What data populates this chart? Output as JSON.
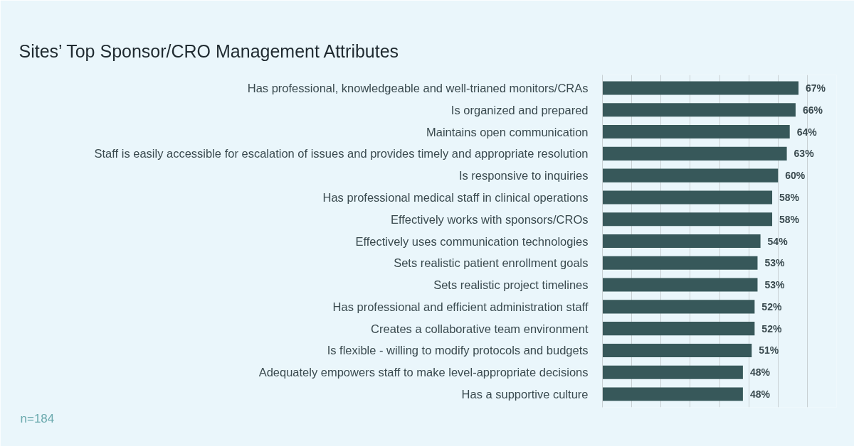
{
  "chart_data": {
    "type": "bar",
    "orientation": "horizontal",
    "title": "Sites’ Top Sponsor/CRO Management Attributes",
    "categories": [
      "Has professional, knowledgeable and well-trianed monitors/CRAs",
      "Is organized and prepared",
      "Maintains open communication",
      "Staff is easily accessible for escalation of issues and provides timely and appropriate resolution",
      "Is responsive to inquiries",
      "Has professional medical staff in clinical operations",
      "Effectively works with sponsors/CROs",
      "Effectively uses communication technologies",
      "Sets realistic patient enrollment goals",
      "Sets realistic project timelines",
      "Has professional and efficient administration staff",
      "Creates a collaborative team environment",
      "Is flexible - willing to modify protocols and budgets",
      "Adequately empowers staff to make level-appropriate decisions",
      "Has a supportive culture"
    ],
    "values": [
      67,
      66,
      64,
      63,
      60,
      58,
      58,
      54,
      53,
      53,
      52,
      52,
      51,
      48,
      48
    ],
    "value_labels": [
      "67%",
      "66%",
      "64%",
      "63%",
      "60%",
      "58%",
      "58%",
      "54%",
      "53%",
      "53%",
      "52%",
      "52%",
      "51%",
      "48%",
      "48%"
    ],
    "color": "#37585a",
    "xlim": [
      0,
      80
    ],
    "xticks": [
      {
        "value": 0,
        "label": null
      },
      {
        "value": 10,
        "label": null
      },
      {
        "value": 20,
        "label": null
      },
      {
        "value": 30,
        "label": null
      },
      {
        "value": 40,
        "label": null
      },
      {
        "value": 50,
        "label": null
      },
      {
        "value": 60,
        "label": null
      },
      {
        "value": 70,
        "label": null
      },
      {
        "value": 80,
        "label": null
      }
    ],
    "grid": "x",
    "tick_labels": "y",
    "annotations": [
      "n=184"
    ]
  }
}
